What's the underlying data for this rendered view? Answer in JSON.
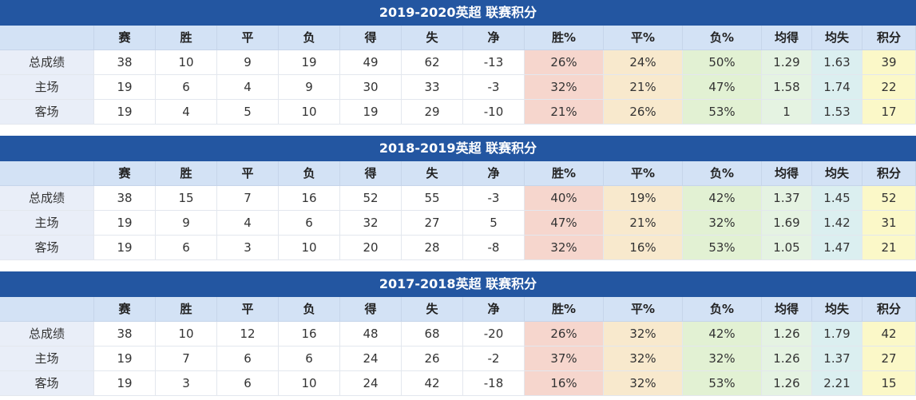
{
  "tables": [
    {
      "title": "2019-2020英超 联赛积分",
      "header": [
        "赛",
        "胜",
        "平",
        "负",
        "得",
        "失",
        "净",
        "胜%",
        "平%",
        "负%",
        "均得",
        "均失",
        "积分"
      ],
      "rows": [
        [
          "总成绩",
          "38",
          "10",
          "9",
          "19",
          "49",
          "62",
          "-13",
          "26%",
          "24%",
          "50%",
          "1.29",
          "1.63",
          "39"
        ],
        [
          "主场",
          "19",
          "6",
          "4",
          "9",
          "30",
          "33",
          "-3",
          "32%",
          "21%",
          "47%",
          "1.58",
          "1.74",
          "22"
        ],
        [
          "客场",
          "19",
          "4",
          "5",
          "10",
          "19",
          "29",
          "-10",
          "21%",
          "26%",
          "53%",
          "1",
          "1.53",
          "17"
        ]
      ]
    },
    {
      "title": "2018-2019英超 联赛积分",
      "header": [
        "赛",
        "胜",
        "平",
        "负",
        "得",
        "失",
        "净",
        "胜%",
        "平%",
        "负%",
        "均得",
        "均失",
        "积分"
      ],
      "rows": [
        [
          "总成绩",
          "38",
          "15",
          "7",
          "16",
          "52",
          "55",
          "-3",
          "40%",
          "19%",
          "42%",
          "1.37",
          "1.45",
          "52"
        ],
        [
          "主场",
          "19",
          "9",
          "4",
          "6",
          "32",
          "27",
          "5",
          "47%",
          "21%",
          "32%",
          "1.69",
          "1.42",
          "31"
        ],
        [
          "客场",
          "19",
          "6",
          "3",
          "10",
          "20",
          "28",
          "-8",
          "32%",
          "16%",
          "53%",
          "1.05",
          "1.47",
          "21"
        ]
      ]
    },
    {
      "title": "2017-2018英超 联赛积分",
      "header": [
        "赛",
        "胜",
        "平",
        "负",
        "得",
        "失",
        "净",
        "胜%",
        "平%",
        "负%",
        "均得",
        "均失",
        "积分"
      ],
      "rows": [
        [
          "总成绩",
          "38",
          "10",
          "12",
          "16",
          "48",
          "68",
          "-20",
          "26%",
          "32%",
          "42%",
          "1.26",
          "1.79",
          "42"
        ],
        [
          "主场",
          "19",
          "7",
          "6",
          "6",
          "24",
          "26",
          "-2",
          "37%",
          "32%",
          "32%",
          "1.26",
          "1.37",
          "27"
        ],
        [
          "客场",
          "19",
          "3",
          "6",
          "10",
          "24",
          "42",
          "-18",
          "16%",
          "32%",
          "53%",
          "1.26",
          "2.21",
          "15"
        ]
      ]
    }
  ]
}
